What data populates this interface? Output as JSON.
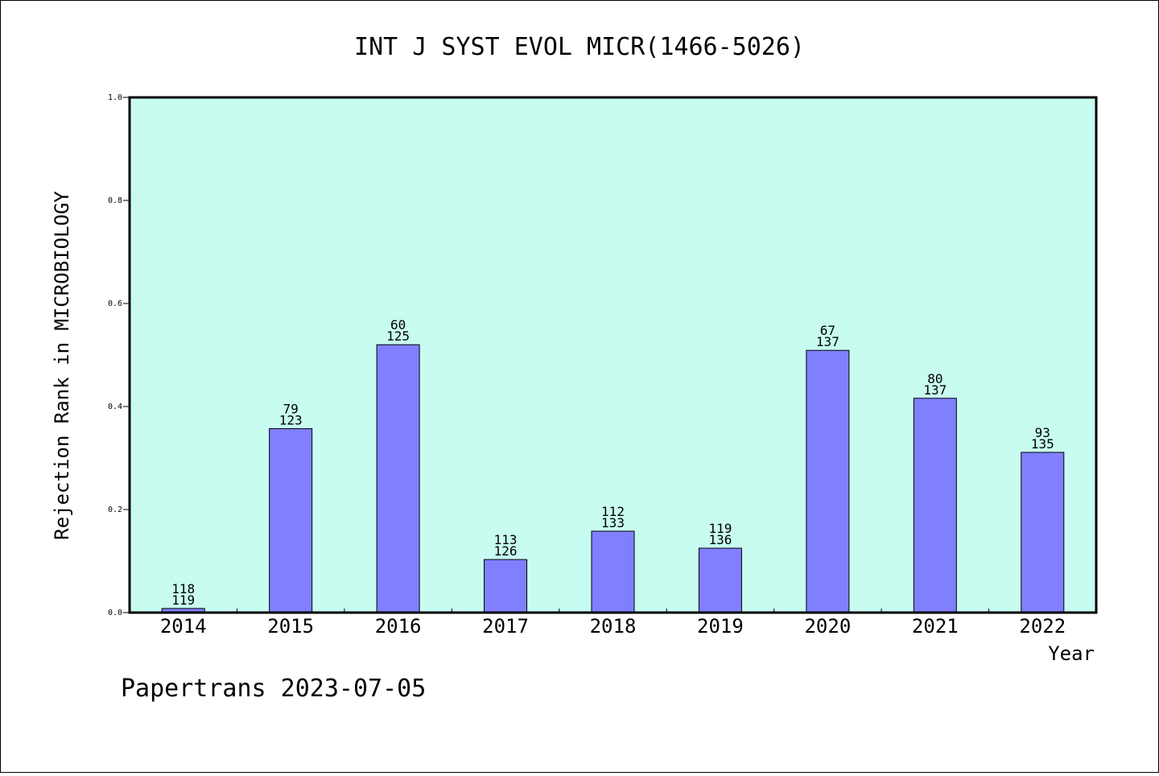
{
  "chart_data": {
    "type": "bar",
    "title": "INT J SYST EVOL MICR(1466-5026)",
    "xlabel": "Year",
    "ylabel": "Rejection Rank in MICROBIOLOGY",
    "ylim": [
      0,
      1.0
    ],
    "yticks": [
      "0.0",
      "0.2",
      "0.4",
      "0.6",
      "0.8",
      "1.0"
    ],
    "categories": [
      "2014",
      "2015",
      "2016",
      "2017",
      "2018",
      "2019",
      "2020",
      "2021",
      "2022"
    ],
    "values": [
      0.008,
      0.357,
      0.52,
      0.103,
      0.158,
      0.125,
      0.509,
      0.416,
      0.311
    ],
    "labels_top": [
      "118",
      "79",
      "60",
      "113",
      "112",
      "119",
      "67",
      "80",
      "93"
    ],
    "labels_bottom": [
      "119",
      "123",
      "125",
      "126",
      "133",
      "136",
      "137",
      "137",
      "135"
    ],
    "grid": false,
    "colors": {
      "plot_background": "#c8fcf0",
      "bar_fill": "#8080ff",
      "bar_stroke": "#000000"
    }
  },
  "footer": "Papertrans 2023-07-05"
}
